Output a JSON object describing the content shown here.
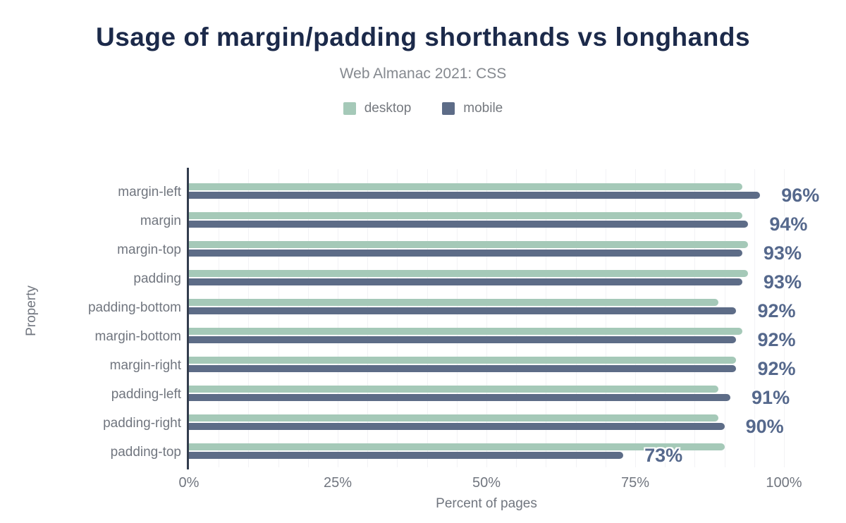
{
  "header": {
    "title": "Usage of margin/padding shorthands vs longhands",
    "subtitle": "Web Almanac 2021: CSS"
  },
  "legend": [
    {
      "name": "desktop",
      "label": "desktop",
      "color": "#a5c9b8"
    },
    {
      "name": "mobile",
      "label": "mobile",
      "color": "#5d6c87"
    }
  ],
  "colors": {
    "title": "#1c2a4a",
    "axis_line": "#333d4e",
    "gridline": "#f2f2f5",
    "value_label": "#55688c",
    "gray_text": "#71767f"
  },
  "chart_data": {
    "type": "bar",
    "orientation": "horizontal",
    "title": "Usage of margin/padding shorthands vs longhands",
    "subtitle": "Web Almanac 2021: CSS",
    "xlabel": "Percent of pages",
    "ylabel": "Property",
    "xlim": [
      0,
      100
    ],
    "grid": true,
    "grid_step": 5,
    "legend_position": "top",
    "categories": [
      "margin-left",
      "margin",
      "margin-top",
      "padding",
      "padding-bottom",
      "margin-bottom",
      "margin-right",
      "padding-left",
      "padding-right",
      "padding-top"
    ],
    "series": [
      {
        "name": "desktop",
        "color": "#a5c9b8",
        "values": [
          93,
          93,
          94,
          94,
          89,
          93,
          92,
          89,
          89,
          90
        ]
      },
      {
        "name": "mobile",
        "color": "#5d6c87",
        "values": [
          96,
          94,
          93,
          93,
          92,
          92,
          92,
          91,
          90,
          73
        ]
      }
    ],
    "bar_labels": [
      "96%",
      "94%",
      "93%",
      "93%",
      "92%",
      "92%",
      "92%",
      "91%",
      "90%",
      "73%"
    ],
    "bar_labels_series": "mobile",
    "xticks": [
      {
        "value": 0,
        "label": "0%"
      },
      {
        "value": 25,
        "label": "25%"
      },
      {
        "value": 50,
        "label": "50%"
      },
      {
        "value": 75,
        "label": "75%"
      },
      {
        "value": 100,
        "label": "100%"
      }
    ]
  }
}
